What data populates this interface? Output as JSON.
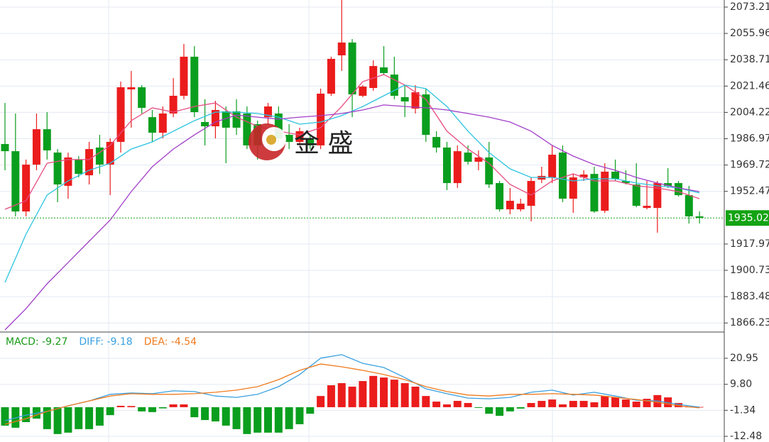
{
  "chart_data": [
    {
      "type": "candlestick",
      "open": [
        1983.5,
        1978.8,
        1939.3,
        1970.0,
        1993.2,
        1977.9,
        1956.1,
        1973.3,
        1963.0,
        1981.2,
        1970.0,
        1984.9,
        2019.3,
        2020.7,
        2001.1,
        1990.9,
        2003.5,
        2015.1,
        2040.7,
        1997.9,
        1995.1,
        2004.9,
        2004.9,
        2003.5,
        1996.5,
        2001.1,
        2003.5,
        1989.5,
        1984.9,
        1987.2,
        1982.6,
        2016.5,
        2041.6,
        2050.0,
        2015.1,
        2020.2,
        2033.7,
        2029.0,
        2014.2,
        2006.7,
        2016.0,
        1988.1,
        1981.2,
        1957.9,
        1977.9,
        1971.9,
        1974.7,
        1957.9,
        1940.7,
        1940.7,
        1943.0,
        1960.2,
        1961.6,
        1977.9,
        1947.7,
        1961.6,
        1963.9,
        1939.8,
        1965.4,
        1959.3,
        1957.0,
        1941.6,
        1941.6,
        1957.9,
        1957.9,
        1950.0,
        1936.1
      ],
      "high": [
        2010.4,
        2003.5,
        1973.3,
        2003.5,
        2004.4,
        1980.2,
        1977.9,
        1975.6,
        1984.9,
        1989.5,
        1987.2,
        2024.4,
        2031.4,
        2022.1,
        2005.8,
        2008.1,
        2026.7,
        2049.0,
        2047.6,
        2012.8,
        2011.8,
        2008.1,
        2012.8,
        2008.1,
        1998.8,
        2010.4,
        2008.1,
        1996.5,
        1994.2,
        1989.5,
        2019.8,
        2040.7,
        2077.9,
        2052.3,
        2022.1,
        2038.3,
        2047.6,
        2040.7,
        2022.1,
        2022.1,
        2019.8,
        1991.9,
        1984.9,
        1982.6,
        1982.6,
        1979.3,
        1984.9,
        1959.3,
        1954.7,
        1947.7,
        1961.6,
        1968.6,
        1982.6,
        1982.6,
        1963.9,
        1966.3,
        1968.6,
        1970.9,
        1973.3,
        1966.3,
        1970.9,
        1959.3,
        1959.3,
        1967.7,
        1959.3,
        1956.1,
        1939.3
      ],
      "low": [
        1966.3,
        1936.1,
        1936.1,
        1966.3,
        1973.3,
        1945.4,
        1947.7,
        1961.6,
        1957.0,
        1963.9,
        1950.0,
        1977.9,
        1994.2,
        2003.5,
        1984.9,
        1987.2,
        2001.1,
        2012.8,
        2001.1,
        1982.6,
        1987.2,
        1970.9,
        1989.5,
        1980.2,
        1973.3,
        1996.5,
        1984.9,
        1980.2,
        1982.6,
        1980.2,
        1980.2,
        2015.1,
        2031.4,
        2001.1,
        2014.2,
        2018.4,
        2028.6,
        2012.8,
        2001.1,
        2003.5,
        1984.9,
        1977.9,
        1953.3,
        1954.7,
        1970.0,
        1966.3,
        1954.7,
        1939.3,
        1937.5,
        1939.3,
        1932.8,
        1957.9,
        1957.9,
        1945.4,
        1938.4,
        1959.3,
        1938.4,
        1938.4,
        1959.3,
        1957.0,
        1942.1,
        1940.7,
        1925.4,
        1954.7,
        1949.1,
        1931.4,
        1931.4
      ],
      "close": [
        1978.8,
        1939.3,
        1970.0,
        1993.2,
        1979.3,
        1957.0,
        1974.7,
        1963.9,
        1980.2,
        1970.0,
        1984.9,
        2020.7,
        2020.7,
        2007.2,
        1990.9,
        2003.5,
        2015.1,
        2040.7,
        2004.4,
        1995.1,
        2005.8,
        1994.2,
        1994.2,
        1982.6,
        1982.6,
        2008.1,
        1987.2,
        1984.9,
        1991.9,
        1982.6,
        2016.5,
        2039.3,
        2050.0,
        2016.0,
        2021.1,
        2034.6,
        2030.0,
        2015.1,
        2011.4,
        2017.4,
        1989.5,
        1981.2,
        1957.9,
        1978.8,
        1971.9,
        1974.7,
        1957.0,
        1940.7,
        1946.3,
        1944.4,
        1959.3,
        1962.6,
        1976.5,
        1947.7,
        1961.6,
        1963.5,
        1939.3,
        1965.4,
        1960.7,
        1957.9,
        1943.0,
        1943.0,
        1957.9,
        1956.1,
        1950.0,
        1936.1,
        1935.1
      ],
      "up_color": "#eb1c1c",
      "down_color": "#0a9e1e",
      "lines": [
        {
          "color": "#e64c82",
          "x": [
            0,
            2,
            4,
            6,
            8,
            10,
            12,
            14,
            16,
            18,
            20,
            22,
            24,
            26,
            28,
            30,
            32,
            34,
            36,
            38,
            40,
            42,
            44,
            46,
            48,
            50,
            52,
            54,
            56,
            58,
            60,
            62,
            64,
            66
          ],
          "values": [
            1940.7,
            1946.3,
            1970.9,
            1973.3,
            1973.3,
            1982.6,
            1998.8,
            2007.2,
            2004.4,
            2008.1,
            2010.4,
            2001.1,
            1995.1,
            1991.9,
            1989.5,
            1994.2,
            2008.1,
            2024.4,
            2029.0,
            2022.1,
            2012.8,
            1991.9,
            1980.2,
            1970.9,
            1957.0,
            1950.0,
            1959.3,
            1963.9,
            1959.3,
            1959.3,
            1956.1,
            1954.7,
            1952.3,
            1947.7
          ]
        },
        {
          "color": "#2cc3e0",
          "x": [
            0,
            2,
            4,
            6,
            8,
            10,
            12,
            14,
            16,
            18,
            20,
            22,
            24,
            26,
            28,
            30,
            32,
            34,
            36,
            38,
            40,
            42,
            44,
            46,
            48,
            50,
            52,
            54,
            56,
            58,
            60,
            62,
            64,
            66
          ],
          "values": [
            1892.8,
            1924.4,
            1950.0,
            1959.3,
            1966.3,
            1970.9,
            1980.2,
            1984.9,
            1991.9,
            1998.8,
            2004.4,
            2004.4,
            2003.5,
            2001.1,
            1996.5,
            1997.9,
            2002.1,
            2008.1,
            2015.1,
            2022.1,
            2019.8,
            2008.1,
            1991.9,
            1977.9,
            1967.2,
            1961.6,
            1961.6,
            1959.3,
            1960.7,
            1960.7,
            1957.9,
            1956.1,
            1954.7,
            1951.4
          ]
        },
        {
          "color": "#a23ec8",
          "x": [
            0,
            2,
            4,
            6,
            8,
            10,
            12,
            14,
            16,
            18,
            20,
            22,
            24,
            26,
            28,
            30,
            32,
            34,
            36,
            38,
            40,
            42,
            44,
            46,
            48,
            50,
            52,
            54,
            56,
            58,
            60,
            62,
            64,
            66
          ],
          "values": [
            1861.7,
            1875.6,
            1891.9,
            1905.8,
            1919.8,
            1933.7,
            1952.3,
            1968.6,
            1980.2,
            1989.5,
            1997.9,
            2002.5,
            2001.1,
            1999.8,
            2001.1,
            2002.1,
            2003.5,
            2005.8,
            2009.1,
            2008.1,
            2007.2,
            2005.8,
            2003.5,
            2001.1,
            1997.9,
            1991.9,
            1982.6,
            1975.6,
            1970.0,
            1966.3,
            1961.6,
            1957.9,
            1954.7,
            1952.3
          ]
        }
      ],
      "ylim": [
        1860.3,
        2077.86
      ],
      "yticks": [
        2073.21,
        2055.96,
        2038.71,
        2021.46,
        2004.22,
        1986.97,
        1969.72,
        1952.47,
        1917.97,
        1900.73,
        1883.48,
        1866.23
      ],
      "last_price": 1935.02,
      "watermark": "金 盛"
    },
    {
      "type": "macd",
      "legend": [
        {
          "label": "MACD: -9.27",
          "color": "#1a9a1a"
        },
        {
          "label": "DIFF: -9.18",
          "color": "#3aa0e0"
        },
        {
          "label": "DEA: -4.54",
          "color": "#f07a1e"
        }
      ],
      "histogram": [
        -7.9,
        -8.8,
        -6.4,
        -4.9,
        -9.4,
        -11.5,
        -10.9,
        -9.4,
        -9.4,
        -7.9,
        -3.4,
        0.6,
        0.5,
        -1.8,
        -2.1,
        -0.5,
        1.2,
        1.2,
        -4.3,
        -5.5,
        -6.1,
        -7.9,
        -9.4,
        -11.5,
        -10.9,
        -10.9,
        -10.9,
        -9.4,
        -7.3,
        -2.8,
        4.8,
        9.4,
        10.3,
        8.8,
        11.2,
        13.4,
        12.7,
        11.8,
        10.3,
        8.8,
        4.8,
        2.4,
        1.2,
        2.7,
        1.8,
        -0.3,
        -2.8,
        -3.7,
        -1.8,
        -0.6,
        1.8,
        2.7,
        3.3,
        1.2,
        2.7,
        2.7,
        2.1,
        4.8,
        4.2,
        3.3,
        2.4,
        3.6,
        5.2,
        4.2,
        1.8,
        0.2,
        0.1
      ],
      "up_color": "#eb1c1c",
      "down_color": "#0a9e1e",
      "lines": [
        {
          "color": "#3aa0e0",
          "x": [
            0,
            2,
            4,
            6,
            8,
            10,
            12,
            14,
            16,
            18,
            20,
            22,
            24,
            26,
            28,
            30,
            32,
            34,
            36,
            38,
            40,
            42,
            44,
            46,
            48,
            50,
            52,
            54,
            56,
            58,
            60,
            62,
            64,
            66
          ],
          "values": [
            -5.8,
            -3.4,
            -1.8,
            0.6,
            2.7,
            5.5,
            6.1,
            5.8,
            7.0,
            6.7,
            4.8,
            4.2,
            5.5,
            8.8,
            14.0,
            21.0,
            22.5,
            18.8,
            17.0,
            12.7,
            7.9,
            5.8,
            3.9,
            3.6,
            4.2,
            6.4,
            7.3,
            5.2,
            6.4,
            4.8,
            3.0,
            2.7,
            1.2,
            0.0
          ]
        },
        {
          "color": "#f07a1e",
          "x": [
            0,
            2,
            4,
            6,
            8,
            10,
            12,
            14,
            16,
            18,
            20,
            22,
            24,
            26,
            28,
            30,
            32,
            34,
            36,
            38,
            40,
            42,
            44,
            46,
            48,
            50,
            52,
            54,
            56,
            58,
            60,
            62,
            64,
            66
          ],
          "values": [
            -7.3,
            -4.9,
            -1.8,
            0.6,
            2.7,
            4.8,
            5.8,
            5.5,
            5.5,
            5.8,
            6.4,
            7.3,
            8.8,
            11.8,
            15.8,
            18.5,
            17.3,
            15.8,
            14.0,
            11.8,
            8.8,
            6.7,
            5.2,
            4.8,
            5.5,
            5.5,
            5.8,
            5.5,
            5.2,
            4.2,
            3.3,
            2.1,
            0.6,
            -0.3
          ]
        }
      ],
      "ylim": [
        -14.91,
        32.2
      ],
      "yticks": [
        20.95,
        {
          "value": 9.8,
          "label": "9.80"
        },
        -1.34,
        -12.48
      ]
    }
  ]
}
